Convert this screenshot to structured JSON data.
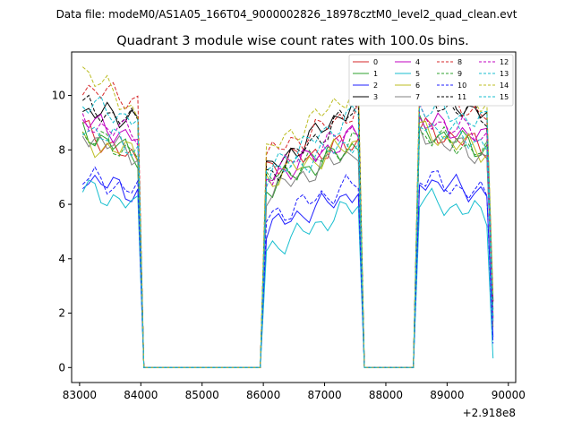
{
  "header": {
    "data_file_label": "Data file: modeM0/AS1A05_166T04_9000002826_18978cztM0_level2_quad_clean.evt"
  },
  "chart_data": {
    "type": "line",
    "title": "Quadrant 3 module wise count rates with 100.0s bins.",
    "xlabel": "",
    "ylabel": "",
    "x_offset_label": "+2.918e8",
    "xlim": [
      82870,
      90120
    ],
    "ylim": [
      -0.55,
      11.6
    ],
    "x_ticks": [
      83000,
      84000,
      85000,
      86000,
      87000,
      88000,
      89000,
      90000
    ],
    "x_tick_labels": [
      "83000",
      "84000",
      "85000",
      "86000",
      "87000",
      "88000",
      "89000",
      "90000"
    ],
    "y_ticks": [
      0,
      2,
      4,
      6,
      8,
      10
    ],
    "y_tick_labels": [
      "0",
      "2",
      "4",
      "6",
      "8",
      "10"
    ],
    "grid": false,
    "legend_position": "top-right",
    "legend_columns": 4,
    "x_segments": [
      {
        "start": 83050,
        "end": 84050
      },
      {
        "start": 84050,
        "end": 86050
      },
      {
        "start": 86050,
        "end": 87650
      },
      {
        "start": 87650,
        "end": 88550
      },
      {
        "start": 88550,
        "end": 89750
      }
    ],
    "series": [
      {
        "name": "0",
        "color": "#d62728",
        "dash": false,
        "levels": [
          8.8,
          7.5,
          0,
          7.4,
          8.3,
          0,
          8.8,
          8.1,
          1.8
        ]
      },
      {
        "name": "1",
        "color": "#2ca02c",
        "dash": false,
        "levels": [
          8.7,
          7.8,
          0,
          6.6,
          8.2,
          0,
          8.8,
          8.0,
          1.8
        ]
      },
      {
        "name": "2",
        "color": "#1f1fff",
        "dash": false,
        "levels": [
          7.0,
          6.4,
          0,
          5.1,
          6.5,
          0,
          6.9,
          6.4,
          1.2
        ]
      },
      {
        "name": "3",
        "color": "#000000",
        "dash": false,
        "levels": [
          9.4,
          9.2,
          0,
          7.2,
          9.8,
          0,
          10.2,
          9.3,
          2.0
        ]
      },
      {
        "name": "4",
        "color": "#c000c0",
        "dash": false,
        "levels": [
          9.1,
          8.4,
          0,
          6.9,
          8.6,
          0,
          9.1,
          8.4,
          1.9
        ]
      },
      {
        "name": "5",
        "color": "#17becf",
        "dash": false,
        "levels": [
          6.6,
          5.9,
          0,
          4.3,
          6.0,
          0,
          6.2,
          5.6,
          0.6
        ]
      },
      {
        "name": "6",
        "color": "#bcbd22",
        "dash": false,
        "levels": [
          8.2,
          7.9,
          0,
          6.9,
          8.3,
          0,
          8.7,
          7.9,
          1.8
        ]
      },
      {
        "name": "7",
        "color": "#808080",
        "dash": false,
        "levels": [
          8.6,
          7.8,
          0,
          6.4,
          8.0,
          0,
          8.6,
          7.7,
          1.7
        ]
      },
      {
        "name": "8",
        "color": "#d62728",
        "dash": true,
        "levels": [
          10.3,
          9.8,
          0,
          7.8,
          9.5,
          0,
          10.1,
          9.3,
          2.1
        ]
      },
      {
        "name": "9",
        "color": "#2ca02c",
        "dash": true,
        "levels": [
          8.5,
          7.9,
          0,
          6.9,
          8.3,
          0,
          8.6,
          7.9,
          1.8
        ]
      },
      {
        "name": "10",
        "color": "#1f1fff",
        "dash": true,
        "levels": [
          7.0,
          6.5,
          0,
          5.5,
          6.8,
          0,
          7.0,
          6.3,
          1.3
        ]
      },
      {
        "name": "11",
        "color": "#000000",
        "dash": true,
        "levels": [
          9.6,
          9.0,
          0,
          7.0,
          9.6,
          0,
          9.9,
          9.2,
          2.0
        ]
      },
      {
        "name": "12",
        "color": "#c000c0",
        "dash": true,
        "levels": [
          9.0,
          8.6,
          0,
          7.1,
          8.8,
          0,
          9.2,
          8.5,
          1.9
        ]
      },
      {
        "name": "13",
        "color": "#17becf",
        "dash": true,
        "levels": [
          8.9,
          8.0,
          0,
          7.0,
          8.4,
          0,
          9.0,
          8.2,
          1.8
        ]
      },
      {
        "name": "14",
        "color": "#bcbd22",
        "dash": true,
        "levels": [
          11.0,
          9.3,
          0,
          7.9,
          10.3,
          0,
          10.6,
          9.6,
          2.2
        ]
      },
      {
        "name": "15",
        "color": "#17becf",
        "dash": true,
        "levels": [
          9.7,
          9.1,
          0,
          7.3,
          9.4,
          0,
          9.6,
          9.0,
          2.0
        ]
      }
    ]
  }
}
